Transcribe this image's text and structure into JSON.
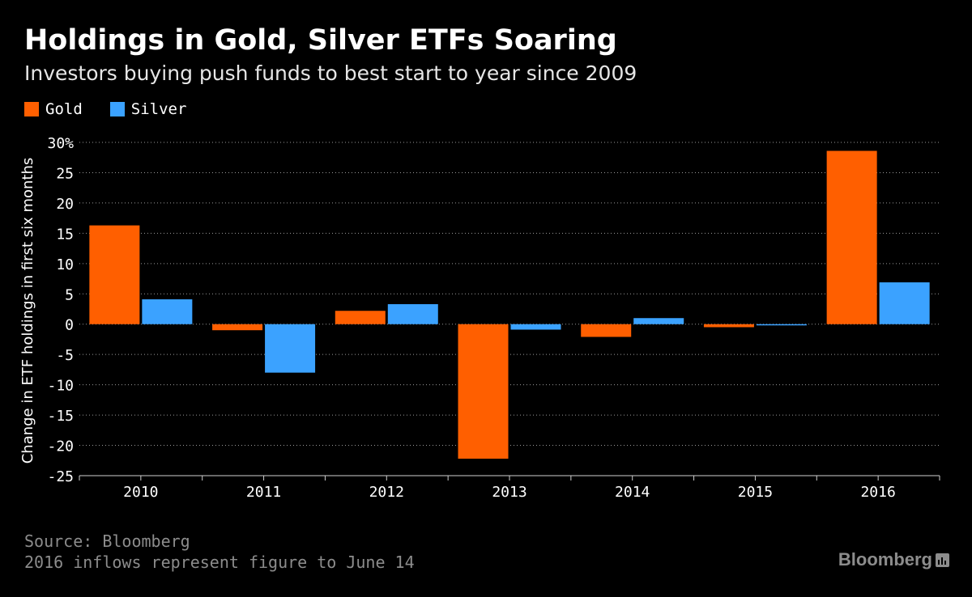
{
  "header": {
    "title": "Holdings in Gold, Silver ETFs Soaring",
    "subtitle": "Investors buying push funds to best start to year since 2009"
  },
  "footer": {
    "source": "Source: Bloomberg",
    "note": "2016 inflows represent figure to June 14",
    "brand": "Bloomberg"
  },
  "colors": {
    "gold": "#ff5f00",
    "silver": "#3ba2ff",
    "grid": "#9a9a9a",
    "axis_text": "#ffffff"
  },
  "chart_data": {
    "type": "bar",
    "title": "Holdings in Gold, Silver ETFs Soaring",
    "subtitle": "Investors buying push funds to best start to year since 2009",
    "ylabel": "Change in ETF holdings in first six months",
    "xlabel": "",
    "categories": [
      "2010",
      "2011",
      "2012",
      "2013",
      "2014",
      "2015",
      "2016"
    ],
    "series": [
      {
        "name": "Gold",
        "color": "#ff5f00",
        "values": [
          16.3,
          -1.0,
          2.2,
          -22.2,
          -2.1,
          -0.5,
          28.6
        ]
      },
      {
        "name": "Silver",
        "color": "#3ba2ff",
        "values": [
          4.1,
          -8.0,
          3.3,
          -0.9,
          1.0,
          -0.2,
          6.9
        ]
      }
    ],
    "ylim": [
      -25,
      30
    ],
    "yticks": [
      30,
      25,
      20,
      15,
      10,
      5,
      0,
      -5,
      -10,
      -15,
      -20,
      -25
    ],
    "ytick_labels": [
      "30%",
      "25",
      "20",
      "15",
      "10",
      "5",
      "0",
      "-5",
      "-10",
      "-15",
      "-20",
      "-25"
    ],
    "grid": true,
    "legend": "top-left"
  }
}
